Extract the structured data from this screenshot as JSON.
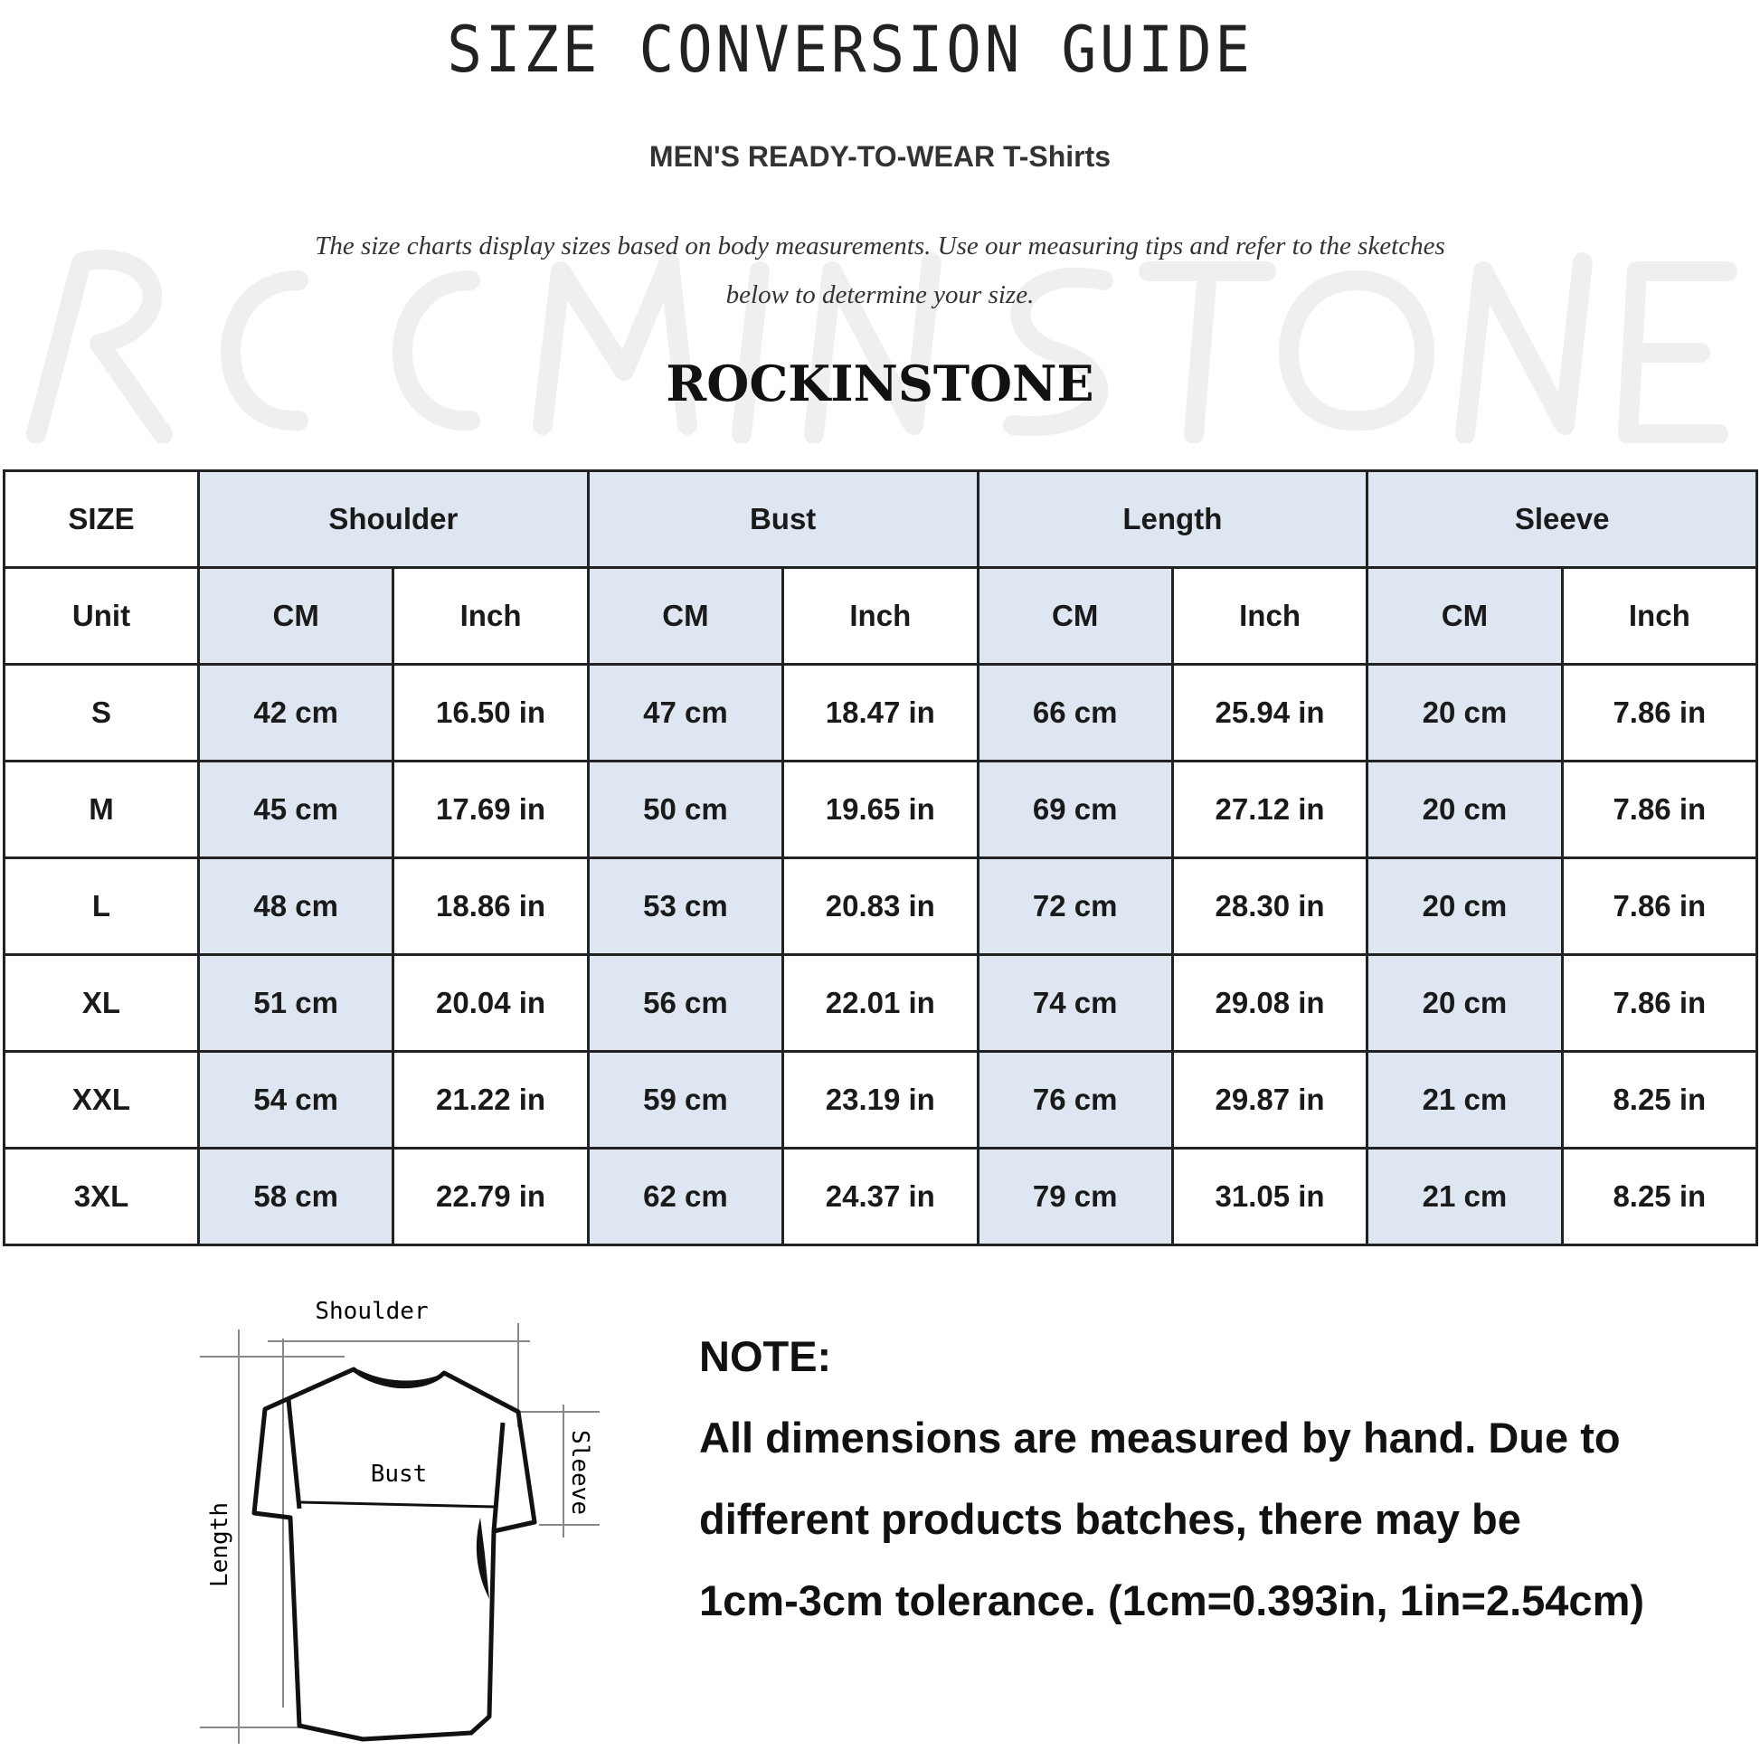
{
  "header": {
    "title": "SIZE CONVERSION GUIDE",
    "subtitle": "MEN'S READY-TO-WEAR T-Shirts",
    "description_line1": "The size charts display sizes based on body measurements. Use our measuring tips and refer to the sketches",
    "description_line2": "below to determine your size.",
    "watermark": "ROCKINSTONE",
    "brand": "ROCKINSTONE"
  },
  "colors": {
    "header_blue": "#dde6f1",
    "border": "#222222"
  },
  "table": {
    "size_label": "SIZE",
    "groups": [
      "Shoulder",
      "Bust",
      "Length",
      "Sleeve"
    ],
    "unit_label": "Unit",
    "units": [
      "CM",
      "Inch",
      "CM",
      "Inch",
      "CM",
      "Inch",
      "CM",
      "Inch"
    ],
    "rows": [
      {
        "size": "S",
        "values": [
          "42 cm",
          "16.50 in",
          "47 cm",
          "18.47 in",
          "66 cm",
          "25.94 in",
          "20 cm",
          "7.86 in"
        ]
      },
      {
        "size": "M",
        "values": [
          "45 cm",
          "17.69 in",
          "50 cm",
          "19.65 in",
          "69 cm",
          "27.12 in",
          "20 cm",
          "7.86 in"
        ]
      },
      {
        "size": "L",
        "values": [
          "48 cm",
          "18.86 in",
          "53 cm",
          "20.83 in",
          "72 cm",
          "28.30 in",
          "20 cm",
          "7.86 in"
        ]
      },
      {
        "size": "XL",
        "values": [
          "51 cm",
          "20.04 in",
          "56 cm",
          "22.01 in",
          "74 cm",
          "29.08 in",
          "20 cm",
          "7.86 in"
        ]
      },
      {
        "size": "XXL",
        "values": [
          "54 cm",
          "21.22 in",
          "59 cm",
          "23.19 in",
          "76 cm",
          "29.87 in",
          "21 cm",
          "8.25 in"
        ]
      },
      {
        "size": "3XL",
        "values": [
          "58 cm",
          "22.79 in",
          "62 cm",
          "24.37 in",
          "79 cm",
          "31.05 in",
          "21 cm",
          "8.25 in"
        ]
      }
    ]
  },
  "sketch": {
    "shoulder": "Shoulder",
    "bust": "Bust",
    "length": "Length",
    "sleeve": "Sleeve"
  },
  "note": {
    "heading": "NOTE:",
    "lines": [
      "All dimensions are measured by hand. Due to",
      "different products batches, there may be",
      "1cm-3cm tolerance. (1cm=0.393in, 1in=2.54cm)"
    ]
  }
}
